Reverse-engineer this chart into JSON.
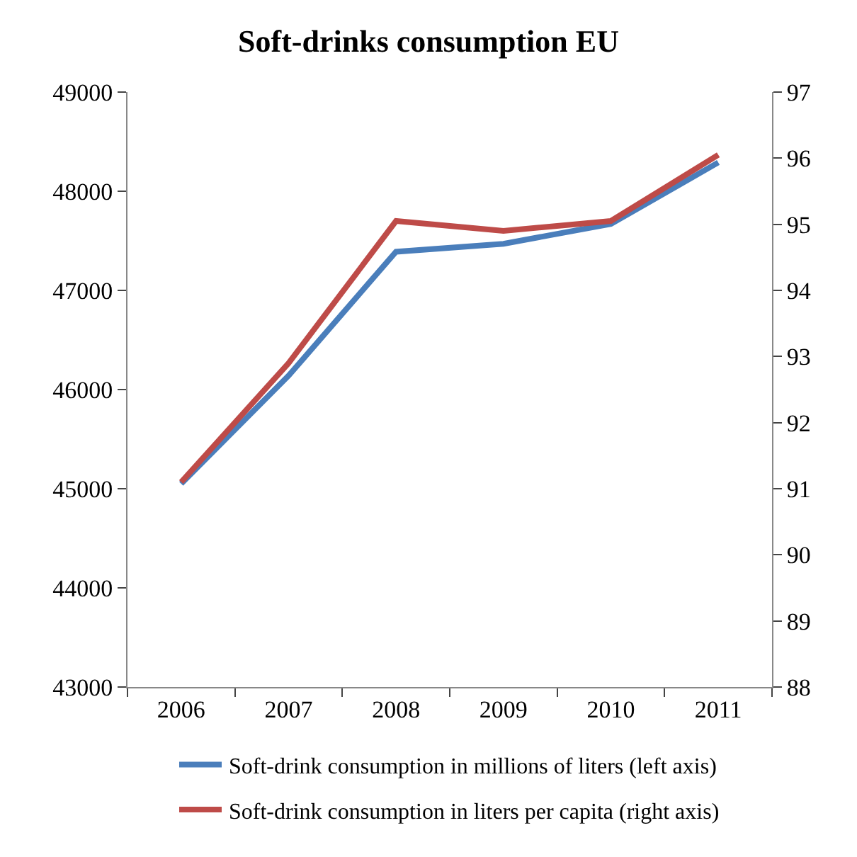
{
  "chart_data": {
    "type": "line",
    "title": "Soft-drinks consumption EU",
    "categories": [
      "2006",
      "2007",
      "2008",
      "2009",
      "2010",
      "2011"
    ],
    "series": [
      {
        "name": "Soft-drink consumption in millions of liters (left axis)",
        "color": "#4a7ebb",
        "values": [
          45050,
          46140,
          47390,
          47470,
          47670,
          48290
        ]
      },
      {
        "name": "Soft-drink consumption in liters per capita (right axis)",
        "color": "#be4b48",
        "axis": "y2",
        "values": [
          91.1,
          92.9,
          95.05,
          94.9,
          95.05,
          96.05
        ]
      }
    ],
    "ylim": [
      43000,
      49000
    ],
    "yticks": [
      43000,
      44000,
      45000,
      46000,
      47000,
      48000,
      49000
    ],
    "y2lim": [
      88,
      97
    ],
    "y2ticks": [
      88,
      89,
      90,
      91,
      92,
      93,
      94,
      95,
      96,
      97
    ],
    "legend": "bottom",
    "marker": "none",
    "line_style": "solid"
  }
}
